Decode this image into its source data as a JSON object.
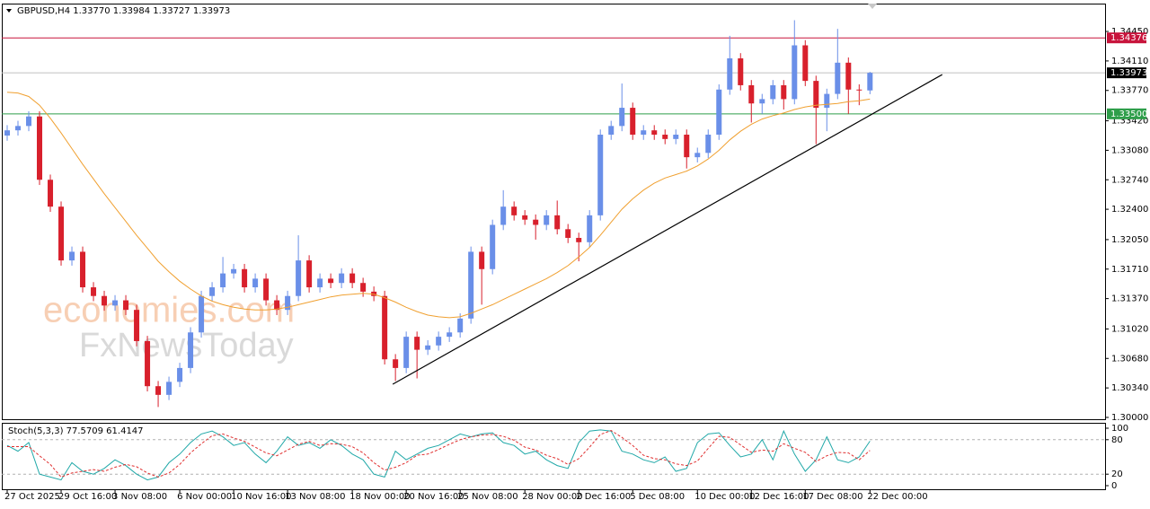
{
  "chart_data": {
    "type": "candlestick",
    "header": "GBPUSD,H4  1.33770 1.33984 1.33727 1.33973",
    "categories": [
      "27 Oct 2025",
      null,
      null,
      null,
      null,
      "29 Oct 16:00",
      null,
      null,
      null,
      null,
      "3 Nov 08:00",
      null,
      null,
      null,
      null,
      null,
      "6 Nov 00:00",
      null,
      null,
      null,
      null,
      "10 Nov 16:00",
      null,
      null,
      null,
      null,
      "13 Nov 08:00",
      null,
      null,
      null,
      null,
      null,
      "18 Nov 00:00",
      null,
      null,
      null,
      null,
      "20 Nov 16:00",
      null,
      null,
      null,
      null,
      "25 Nov 08:00",
      null,
      null,
      null,
      null,
      null,
      "28 Nov 00:00",
      null,
      null,
      null,
      null,
      "2 Dec 16:00",
      null,
      null,
      null,
      null,
      "5 Dec 08:00",
      null,
      null,
      null,
      null,
      null,
      "10 Dec 00:00",
      null,
      null,
      null,
      null,
      "12 Dec 16:00",
      null,
      null,
      null,
      null,
      "17 Dec 08:00",
      null,
      null,
      null,
      null,
      null,
      "22 Dec 00:00"
    ],
    "open": [
      1.3325,
      1.3331,
      1.3336,
      1.3347,
      1.3274,
      1.3243,
      1.3181,
      1.3191,
      1.315,
      1.314,
      1.3129,
      1.3135,
      1.3124,
      1.3088,
      1.3036,
      1.3026,
      1.3041,
      1.3057,
      1.3098,
      1.314,
      1.315,
      1.3166,
      1.3171,
      1.315,
      1.316,
      1.3135,
      1.3124,
      1.314,
      1.3181,
      1.315,
      1.316,
      1.3155,
      1.3166,
      1.3155,
      1.3145,
      1.314,
      1.3067,
      1.3057,
      1.3093,
      1.3078,
      1.3083,
      1.3093,
      1.3098,
      1.3114,
      1.3191,
      1.3171,
      1.3222,
      1.3243,
      1.3233,
      1.3228,
      1.3222,
      1.3233,
      1.3217,
      1.3207,
      1.3202,
      1.3233,
      1.3326,
      1.3336,
      1.3357,
      1.3326,
      1.3331,
      1.3326,
      1.3321,
      1.3326,
      1.33,
      1.3305,
      1.3326,
      1.3378,
      1.3414,
      1.3383,
      1.3362,
      1.3367,
      1.3383,
      1.3367,
      1.3429,
      1.3388,
      1.3357,
      1.3373,
      1.3409,
      1.3378,
      1.3377
    ],
    "high": [
      1.3337,
      1.3342,
      1.3353,
      1.3353,
      1.328,
      1.3249,
      1.3197,
      1.3197,
      1.3156,
      1.3146,
      1.3141,
      1.3141,
      1.313,
      1.3094,
      1.3042,
      1.3047,
      1.3063,
      1.3104,
      1.3146,
      1.3156,
      1.3185,
      1.3177,
      1.3177,
      1.3166,
      1.3166,
      1.3141,
      1.3146,
      1.321,
      1.3187,
      1.3166,
      1.3166,
      1.3172,
      1.3172,
      1.3161,
      1.3151,
      1.3146,
      1.3073,
      1.3099,
      1.3099,
      1.3089,
      1.3099,
      1.3104,
      1.312,
      1.3197,
      1.3197,
      1.3228,
      1.3262,
      1.3249,
      1.3239,
      1.3234,
      1.3239,
      1.325,
      1.3223,
      1.3213,
      1.3239,
      1.3332,
      1.3342,
      1.3385,
      1.3363,
      1.3337,
      1.3337,
      1.3332,
      1.3332,
      1.3332,
      1.3311,
      1.3332,
      1.3384,
      1.344,
      1.342,
      1.3389,
      1.3373,
      1.3389,
      1.3389,
      1.3458,
      1.3435,
      1.3394,
      1.3379,
      1.3448,
      1.3415,
      1.3384,
      1.33984
    ],
    "low": [
      1.3319,
      1.3325,
      1.333,
      1.3268,
      1.3237,
      1.3175,
      1.3175,
      1.3144,
      1.3134,
      1.3123,
      1.3123,
      1.3118,
      1.3082,
      1.303,
      1.3012,
      1.302,
      1.3035,
      1.3051,
      1.3092,
      1.3134,
      1.3144,
      1.316,
      1.3144,
      1.3144,
      1.3129,
      1.3118,
      1.3118,
      1.3134,
      1.3144,
      1.3144,
      1.3149,
      1.3149,
      1.3149,
      1.3139,
      1.3134,
      1.3061,
      1.3042,
      1.3051,
      1.3045,
      1.3072,
      1.3077,
      1.3087,
      1.3092,
      1.3108,
      1.313,
      1.3165,
      1.3216,
      1.3227,
      1.3222,
      1.3205,
      1.3216,
      1.3211,
      1.3201,
      1.318,
      1.3196,
      1.3227,
      1.332,
      1.333,
      1.332,
      1.332,
      1.332,
      1.3315,
      1.3315,
      1.3287,
      1.3294,
      1.3299,
      1.332,
      1.3372,
      1.3377,
      1.334,
      1.335,
      1.3361,
      1.3355,
      1.3361,
      1.3382,
      1.3315,
      1.333,
      1.3367,
      1.335,
      1.336,
      1.33727
    ],
    "close": [
      1.3331,
      1.3336,
      1.3347,
      1.3274,
      1.3243,
      1.3181,
      1.3191,
      1.315,
      1.314,
      1.3129,
      1.3135,
      1.3124,
      1.3088,
      1.3036,
      1.3026,
      1.3041,
      1.3057,
      1.3098,
      1.314,
      1.315,
      1.3166,
      1.3171,
      1.315,
      1.316,
      1.3135,
      1.3124,
      1.314,
      1.3181,
      1.315,
      1.316,
      1.3155,
      1.3166,
      1.3155,
      1.3145,
      1.314,
      1.3067,
      1.3057,
      1.3093,
      1.3078,
      1.3083,
      1.3093,
      1.3098,
      1.3114,
      1.3191,
      1.3171,
      1.3222,
      1.3243,
      1.3233,
      1.3228,
      1.3222,
      1.3233,
      1.3217,
      1.3207,
      1.3202,
      1.3233,
      1.3326,
      1.3336,
      1.3357,
      1.3326,
      1.3331,
      1.3326,
      1.3321,
      1.3326,
      1.33,
      1.3305,
      1.3326,
      1.3378,
      1.3414,
      1.3383,
      1.3362,
      1.3367,
      1.3383,
      1.3367,
      1.3429,
      1.3388,
      1.3357,
      1.3373,
      1.3409,
      1.3378,
      1.3377,
      1.33973
    ],
    "up_color": "#6a8fe8",
    "down_color": "#d8202c",
    "xlim": [
      -0.5,
      101.8
    ],
    "ylim": [
      1.29979,
      1.34761
    ],
    "yticks": [
      {
        "value": 1.3,
        "label": "1.30000"
      },
      {
        "value": 1.3034,
        "label": "1.30340"
      },
      {
        "value": 1.3068,
        "label": "1.30680"
      },
      {
        "value": 1.3102,
        "label": "1.31020"
      },
      {
        "value": 1.3137,
        "label": "1.31370"
      },
      {
        "value": 1.3171,
        "label": "1.31710"
      },
      {
        "value": 1.3205,
        "label": "1.32050"
      },
      {
        "value": 1.324,
        "label": "1.32400"
      },
      {
        "value": 1.3274,
        "label": "1.32740"
      },
      {
        "value": 1.3308,
        "label": "1.33080"
      },
      {
        "value": 1.3342,
        "label": "1.33420"
      },
      {
        "value": 1.3377,
        "label": "1.33770"
      },
      {
        "value": 1.3411,
        "label": "1.34110"
      },
      {
        "value": 1.3445,
        "label": "1.34450"
      }
    ],
    "ma": {
      "color": "#f0a030",
      "values": [
        1.3375,
        1.3374,
        1.337,
        1.336,
        1.3345,
        1.3328,
        1.331,
        1.3292,
        1.3275,
        1.3258,
        1.3242,
        1.3226,
        1.321,
        1.3195,
        1.318,
        1.3168,
        1.3157,
        1.3148,
        1.314,
        1.3134,
        1.313,
        1.3127,
        1.3125,
        1.3124,
        1.3124,
        1.3125,
        1.3127,
        1.313,
        1.3133,
        1.3136,
        1.3139,
        1.3141,
        1.3142,
        1.3143,
        1.3142,
        1.3138,
        1.3133,
        1.3127,
        1.3122,
        1.3118,
        1.3116,
        1.3115,
        1.3116,
        1.312,
        1.3125,
        1.313,
        1.3136,
        1.3142,
        1.3148,
        1.3154,
        1.316,
        1.3167,
        1.3175,
        1.3185,
        1.3196,
        1.321,
        1.3225,
        1.324,
        1.3252,
        1.3262,
        1.327,
        1.3276,
        1.328,
        1.3284,
        1.329,
        1.3298,
        1.3308,
        1.332,
        1.333,
        1.3338,
        1.3344,
        1.3348,
        1.3351,
        1.3355,
        1.3358,
        1.336,
        1.3361,
        1.3362,
        1.3364,
        1.3365,
        1.3367
      ]
    },
    "levels": [
      {
        "value": 1.34376,
        "label": "1.34376",
        "color": "#c8143c"
      },
      {
        "value": 1.33973,
        "label": "1.33973",
        "color": "#000000"
      },
      {
        "value": 1.335,
        "label": "1.33500",
        "color": "#2e9e4a"
      }
    ],
    "trendline": {
      "x": [
        35.75,
        86.7
      ],
      "y": [
        1.30383,
        1.33953
      ],
      "color": "#000000"
    },
    "watermark": [
      "economies.com",
      "FxNewsToday"
    ],
    "indicator": {
      "type": "line",
      "title": "Stoch(5,3,3) 77.5709 61.4147",
      "ylim": [
        0,
        100
      ],
      "yticks": [
        100,
        80,
        20,
        0
      ],
      "levels": [
        80,
        20
      ],
      "series": [
        {
          "color": "#20a8a8",
          "dashed": false,
          "values": [
            70,
            60,
            75,
            20,
            15,
            10,
            40,
            25,
            20,
            30,
            45,
            35,
            20,
            10,
            15,
            40,
            55,
            75,
            90,
            95,
            85,
            70,
            75,
            55,
            40,
            60,
            85,
            70,
            75,
            65,
            80,
            70,
            55,
            45,
            20,
            15,
            60,
            45,
            55,
            65,
            70,
            80,
            90,
            85,
            90,
            92,
            75,
            70,
            55,
            60,
            45,
            35,
            30,
            75,
            95,
            97,
            95,
            60,
            55,
            45,
            40,
            50,
            25,
            30,
            75,
            90,
            92,
            70,
            50,
            55,
            80,
            45,
            95,
            55,
            25,
            45,
            85,
            45,
            40,
            50,
            77.5709
          ]
        },
        {
          "color": "#e03030",
          "dashed": true,
          "values": [
            68,
            68,
            68,
            52,
            37,
            15,
            22,
            25,
            28,
            25,
            32,
            37,
            33,
            22,
            15,
            22,
            37,
            57,
            73,
            87,
            90,
            83,
            77,
            67,
            57,
            52,
            62,
            72,
            77,
            70,
            73,
            72,
            68,
            57,
            40,
            27,
            32,
            40,
            53,
            55,
            63,
            72,
            80,
            85,
            88,
            89,
            86,
            79,
            67,
            62,
            53,
            47,
            37,
            47,
            67,
            89,
            96,
            84,
            70,
            53,
            47,
            45,
            38,
            35,
            43,
            65,
            86,
            84,
            71,
            58,
            62,
            60,
            73,
            65,
            58,
            42,
            52,
            58,
            57,
            45,
            61.4147
          ]
        }
      ]
    }
  }
}
